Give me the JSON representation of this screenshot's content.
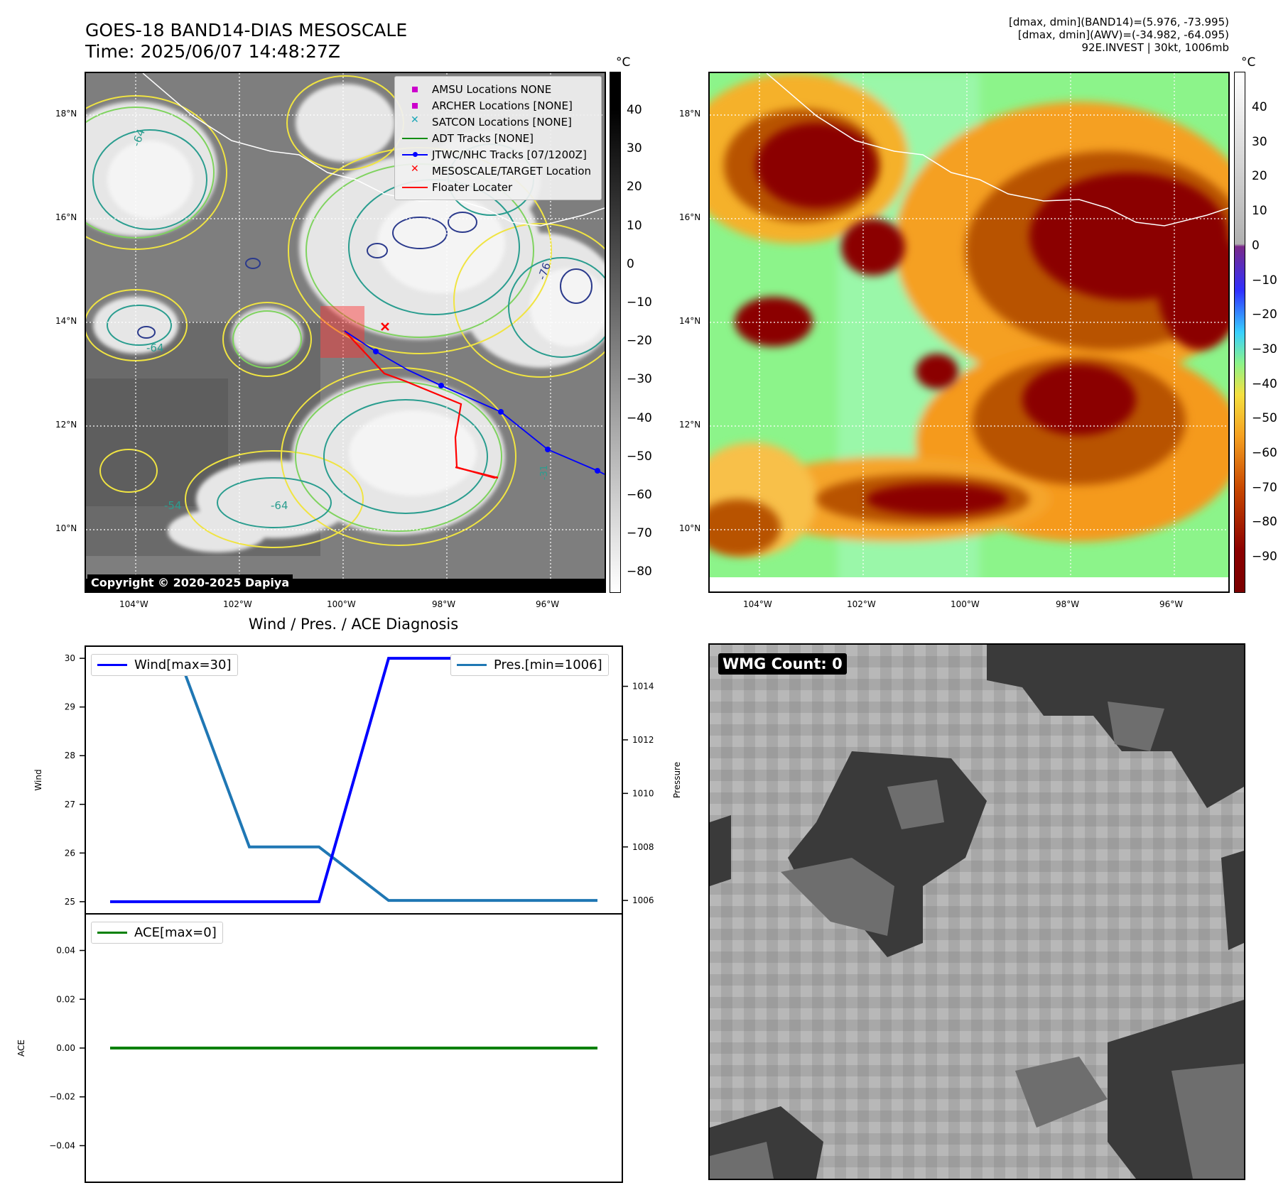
{
  "header": {
    "title_line1": "GOES-18 BAND14-DIAS MESOSCALE",
    "title_line2": "Time: 2025/06/07 14:48:27Z",
    "stats_line1": "[dmax, dmin](BAND14)=(5.976, -73.995)",
    "stats_line2": "[dmax, dmin](AWV)=(-34.982, -64.095)",
    "stats_line3": "92E.INVEST | 30kt, 1006mb"
  },
  "map_axes": {
    "lat_labels": [
      "18°N",
      "16°N",
      "14°N",
      "12°N",
      "10°N"
    ],
    "lon_labels": [
      "104°W",
      "102°W",
      "100°W",
      "98°W",
      "96°W"
    ]
  },
  "colorbar_left": {
    "unit": "°C",
    "ticks": [
      "40",
      "30",
      "20",
      "10",
      "0",
      "−10",
      "−20",
      "−30",
      "−40",
      "−50",
      "−60",
      "−70",
      "−80"
    ]
  },
  "colorbar_right": {
    "unit": "°C",
    "ticks": [
      "40",
      "30",
      "20",
      "10",
      "0",
      "−10",
      "−20",
      "−30",
      "−40",
      "−50",
      "−60",
      "−70",
      "−80",
      "−90"
    ]
  },
  "legend": {
    "items": [
      {
        "label": "AMSU Locations NONE",
        "symbol": "square",
        "color": "#cc00cc"
      },
      {
        "label": "ARCHER Locations [NONE]",
        "symbol": "square",
        "color": "#cc00cc"
      },
      {
        "label": "SATCON Locations [NONE]",
        "symbol": "x",
        "color": "#1aa6b7"
      },
      {
        "label": "ADT Tracks [NONE]",
        "symbol": "line",
        "color": "#138d13"
      },
      {
        "label": "JTWC/NHC Tracks [07/1200Z]",
        "symbol": "line-dot",
        "color": "#0000ff"
      },
      {
        "label": "MESOSCALE/TARGET Location",
        "symbol": "x",
        "color": "#ff0000"
      },
      {
        "label": "Floater Locater",
        "symbol": "line",
        "color": "#ff0000"
      }
    ]
  },
  "copyright": "Copyright © 2020-2025 Dapiya",
  "contour_labels": [
    "-64",
    "-76",
    "-54",
    "-64",
    "-64",
    "-31"
  ],
  "diagnosis_title": "Wind / Pres. / ACE Diagnosis",
  "wmg_label": "WMG Count: 0",
  "colors": {
    "wind": "#0000ff",
    "pressure": "#1f77b4",
    "ace": "#008000",
    "track_jtwc": "#0000ff",
    "floater": "#ff0000"
  },
  "chart_data": [
    {
      "type": "line",
      "title": "Wind / Pres. / ACE Diagnosis",
      "ylabel": "Wind",
      "ylim": [
        24.75,
        30.25
      ],
      "yticks": [
        "30",
        "29",
        "28",
        "27",
        "26",
        "25"
      ],
      "series": [
        {
          "name": "Wind[max=30]",
          "x": [
            0,
            1,
            2,
            3,
            4,
            5,
            6,
            7
          ],
          "values": [
            25,
            25,
            25,
            25,
            30,
            30,
            30,
            30
          ]
        }
      ]
    },
    {
      "type": "line",
      "ylabel": "Pressure",
      "ylim": [
        1005.5,
        1015.5
      ],
      "yticks": [
        "1014",
        "1012",
        "1010",
        "1008",
        "1006"
      ],
      "series": [
        {
          "name": "Pres.[min=1006]",
          "x": [
            0,
            1,
            2,
            3,
            4,
            5,
            6,
            7
          ],
          "values": [
            1015,
            1015,
            1008,
            1008,
            1006,
            1006,
            1006,
            1006
          ]
        }
      ]
    },
    {
      "type": "line",
      "ylabel": "ACE",
      "ylim": [
        -0.055,
        0.055
      ],
      "yticks": [
        "0.04",
        "0.02",
        "0.00",
        "−0.02",
        "−0.04"
      ],
      "series": [
        {
          "name": "ACE[max=0]",
          "x": [
            0,
            1,
            2,
            3,
            4,
            5,
            6,
            7
          ],
          "values": [
            0,
            0,
            0,
            0,
            0,
            0,
            0,
            0
          ]
        }
      ]
    }
  ]
}
